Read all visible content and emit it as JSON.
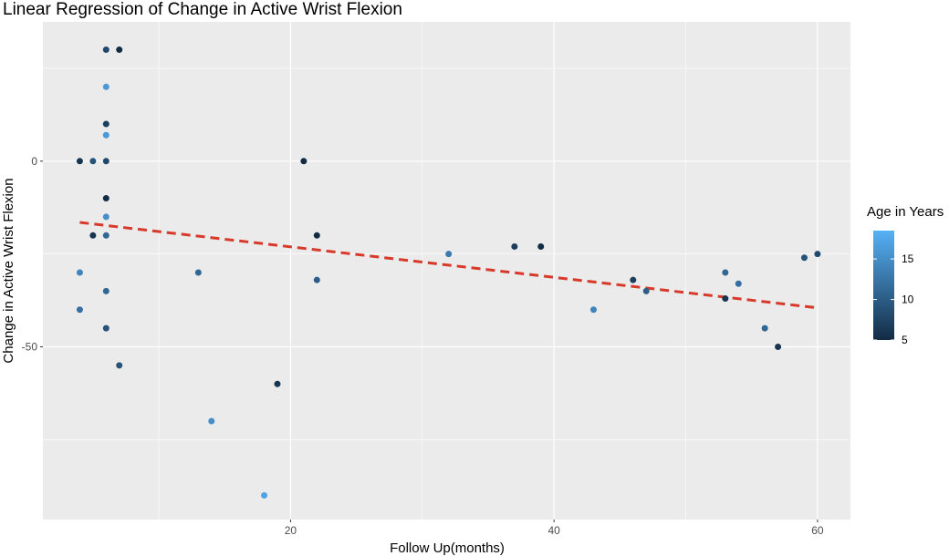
{
  "chart_data": {
    "type": "scatter",
    "title": "Linear Regression of Change in Active Wrist Flexion",
    "xlabel": "Follow Up(months)",
    "ylabel": "Change in  Active Wrist Flexion",
    "xlim": [
      1.2,
      62.5
    ],
    "ylim": [
      -96.5,
      37.5
    ],
    "x_ticks": [
      20,
      40,
      60
    ],
    "y_ticks": [
      0,
      -50
    ],
    "x_minor": [
      10,
      30,
      50
    ],
    "y_minor": [
      25,
      -25,
      -75
    ],
    "grid": true,
    "legend": {
      "title": "Age in Years",
      "position": "right",
      "range": [
        5,
        18.5
      ],
      "ticks": [
        5,
        10,
        15
      ],
      "colors": {
        "low": "#132B43",
        "high": "#56B1F7"
      }
    },
    "points": [
      {
        "x": 4,
        "y": 0,
        "age": 6
      },
      {
        "x": 4,
        "y": -30,
        "age": 14
      },
      {
        "x": 4,
        "y": -40,
        "age": 12
      },
      {
        "x": 5,
        "y": 0,
        "age": 9
      },
      {
        "x": 5,
        "y": -20,
        "age": 6
      },
      {
        "x": 6,
        "y": 30,
        "age": 8
      },
      {
        "x": 6,
        "y": 20,
        "age": 16
      },
      {
        "x": 6,
        "y": 10,
        "age": 7
      },
      {
        "x": 6,
        "y": 7,
        "age": 16
      },
      {
        "x": 6,
        "y": 0,
        "age": 8
      },
      {
        "x": 6,
        "y": -10,
        "age": 5
      },
      {
        "x": 6,
        "y": -15,
        "age": 15
      },
      {
        "x": 6,
        "y": -20,
        "age": 11
      },
      {
        "x": 6,
        "y": -35,
        "age": 11
      },
      {
        "x": 6,
        "y": -45,
        "age": 9
      },
      {
        "x": 7,
        "y": 30,
        "age": 5
      },
      {
        "x": 7,
        "y": -55,
        "age": 9
      },
      {
        "x": 13,
        "y": -30,
        "age": 11
      },
      {
        "x": 14,
        "y": -70,
        "age": 15
      },
      {
        "x": 18,
        "y": -90,
        "age": 17
      },
      {
        "x": 19,
        "y": -60,
        "age": 6
      },
      {
        "x": 21,
        "y": 0,
        "age": 5
      },
      {
        "x": 22,
        "y": -20,
        "age": 5
      },
      {
        "x": 22,
        "y": -32,
        "age": 10
      },
      {
        "x": 32,
        "y": -25,
        "age": 13
      },
      {
        "x": 37,
        "y": -23,
        "age": 7
      },
      {
        "x": 39,
        "y": -23,
        "age": 5
      },
      {
        "x": 43,
        "y": -40,
        "age": 14
      },
      {
        "x": 46,
        "y": -32,
        "age": 7
      },
      {
        "x": 47,
        "y": -35,
        "age": 10
      },
      {
        "x": 53,
        "y": -30,
        "age": 11
      },
      {
        "x": 53,
        "y": -37,
        "age": 6
      },
      {
        "x": 54,
        "y": -33,
        "age": 12
      },
      {
        "x": 56,
        "y": -45,
        "age": 11
      },
      {
        "x": 57,
        "y": -50,
        "age": 6
      },
      {
        "x": 59,
        "y": -26,
        "age": 9
      },
      {
        "x": 60,
        "y": -25,
        "age": 8
      }
    ],
    "regression": {
      "x": [
        4,
        60
      ],
      "y": [
        -16.5,
        -39.5
      ],
      "color": "#d73a2a",
      "style": "dashed"
    }
  }
}
